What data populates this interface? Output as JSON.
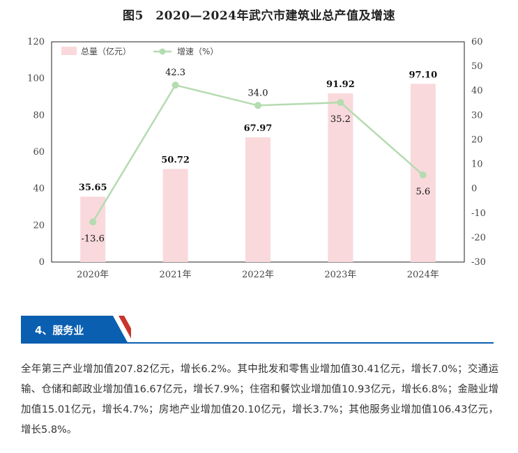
{
  "title": "图5　2020—2024年武穴市建筑业总产值及增速",
  "chart_data": {
    "type": "bar",
    "title": "图5　2020—2024年武穴市建筑业总产值及增速",
    "categories": [
      "2020年",
      "2021年",
      "2022年",
      "2023年",
      "2024年"
    ],
    "series": [
      {
        "name": "总量（亿元）",
        "type": "bar",
        "axis": "left",
        "values": [
          35.65,
          50.72,
          67.97,
          91.92,
          97.1
        ],
        "labels": [
          "35.65",
          "50.72",
          "67.97",
          "91.92",
          "97.10"
        ],
        "color": "#f9d9dc"
      },
      {
        "name": "增速（%）",
        "type": "line",
        "axis": "right",
        "values": [
          -13.6,
          42.3,
          34.0,
          35.2,
          5.6
        ],
        "labels": [
          "-13.6",
          "42.3",
          "34.0",
          "35.2",
          "5.6"
        ],
        "color": "#b5dbb0"
      }
    ],
    "ylim_left": [
      0,
      120
    ],
    "yticks_left": [
      "0",
      "20",
      "40",
      "60",
      "80",
      "100",
      "120"
    ],
    "ylim_right": [
      -30,
      60
    ],
    "yticks_right": [
      "-30",
      "-20",
      "-10",
      "0",
      "10",
      "20",
      "30",
      "40",
      "50",
      "60"
    ],
    "legend": "top-left",
    "grid": false
  },
  "section": {
    "label": "4、服务业",
    "accent": "#0a5fb0"
  },
  "paragraph": "全年第三产业增加值207.82亿元，增长6.2%。其中批发和零售业增加值30.41亿元，增长7.0%；交通运输、仓储和邮政业增加值16.67亿元，增长7.9%；住宿和餐饮业增加值10.93亿元，增长6.8%；金融业增加值15.01亿元，增长4.7%；房地产业增加值20.10亿元，增长3.7%；其他服务业增加值106.43亿元，增长5.8%。"
}
